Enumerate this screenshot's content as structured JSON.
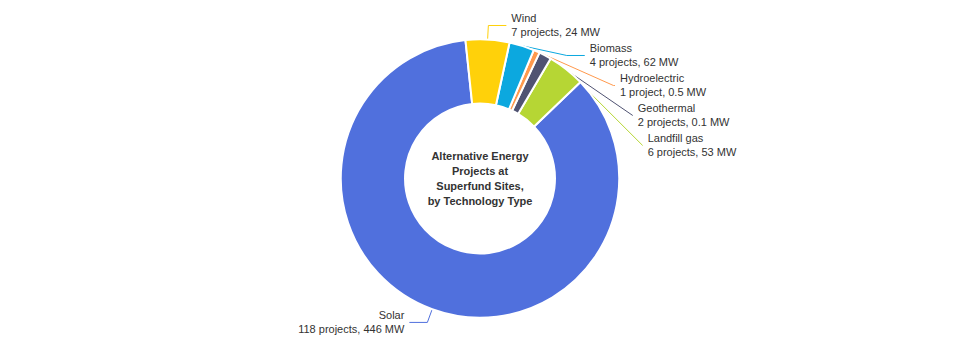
{
  "chart_data": {
    "type": "pie",
    "title": "Alternative Energy\nProjects at\nSuperfund Sites,\nby Technology Type",
    "categories": [
      "Solar",
      "Landfill gas",
      "Geothermal",
      "Hydroelectric",
      "Biomass",
      "Wind"
    ],
    "values": [
      118,
      6,
      2,
      1,
      4,
      7
    ],
    "annotations": [
      "118 projects, 446 MW",
      "6 projects, 53 MW",
      "2 projects, 0.1 MW",
      "1 project, 0.5 MW",
      "4 projects, 62 MW",
      "7 projects, 24 MW"
    ]
  }
}
